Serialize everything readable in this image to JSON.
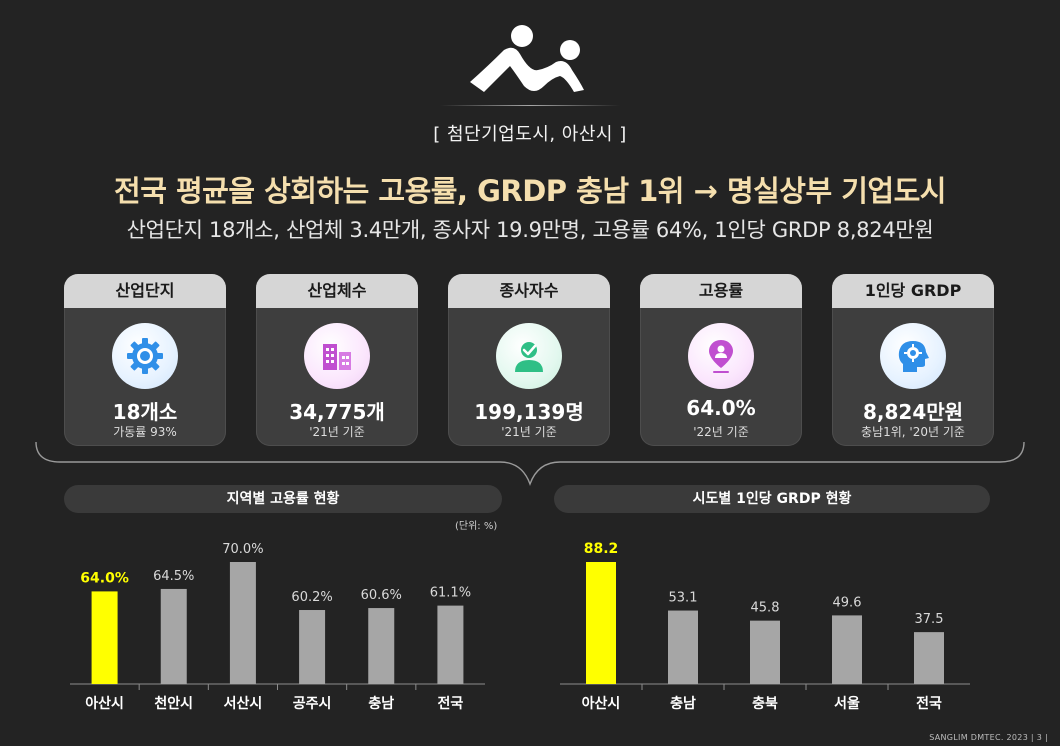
{
  "header": {
    "bracket_title": "[ 첨단기업도시, 아산시 ]",
    "headline": "전국 평균을 상회하는 고용률, GRDP 충남 1위 → 명실상부 기업도시",
    "subline": "산업단지 18개소, 산업체 3.4만개, 종사자 19.9만명, 고용률 64%, 1인당 GRDP 8,824만원"
  },
  "cards": [
    {
      "title": "산업단지",
      "value": "18개소",
      "note": "가동률 93%",
      "icon": "gear-icon",
      "color": "#2f8fe8"
    },
    {
      "title": "산업체수",
      "value": "34,775개",
      "note": "'21년 기준",
      "icon": "buildings-icon",
      "color": "#c04fd0"
    },
    {
      "title": "종사자수",
      "value": "199,139명",
      "note": "'21년 기준",
      "icon": "worker-icon",
      "color": "#2fbf86"
    },
    {
      "title": "고용률",
      "value": "64.0%",
      "note": "'22년 기준",
      "icon": "location-person-icon",
      "color": "#c04fd0"
    },
    {
      "title": "1인당 GRDP",
      "value": "8,824만원",
      "note": "충남1위, '20년 기준",
      "icon": "head-gear-icon",
      "color": "#2f8fe8"
    }
  ],
  "panels": {
    "left_title": "지역별 고용률 현황",
    "right_title": "시도별 1인당 GRDP 현황",
    "unit_label": "(단위: %)"
  },
  "footer": "SANGLIM DMTEC. 2023  | 3 |",
  "colors": {
    "highlight": "#ffff00",
    "bar": "#a6a6a6",
    "headline": "#f5dfae"
  },
  "chart_data": [
    {
      "type": "bar",
      "title": "지역별 고용률 현황",
      "categories": [
        "아산시",
        "천안시",
        "서산시",
        "공주시",
        "충남",
        "전국"
      ],
      "values": [
        64.0,
        64.5,
        70.0,
        60.2,
        60.6,
        61.1
      ],
      "labels": [
        "64.0%",
        "64.5%",
        "70.0%",
        "60.2%",
        "60.6%",
        "61.1%"
      ],
      "highlight_index": 0,
      "ylim": [
        50,
        70
      ]
    },
    {
      "type": "bar",
      "title": "시도별 1인당 GRDP 현황",
      "categories": [
        "아산시",
        "충남",
        "충북",
        "서울",
        "전국"
      ],
      "values": [
        88.2,
        53.1,
        45.8,
        49.6,
        37.5
      ],
      "labels": [
        "88.2",
        "53.1",
        "45.8",
        "49.6",
        "37.5"
      ],
      "highlight_index": 0,
      "ylim": [
        0,
        88.2
      ]
    }
  ]
}
